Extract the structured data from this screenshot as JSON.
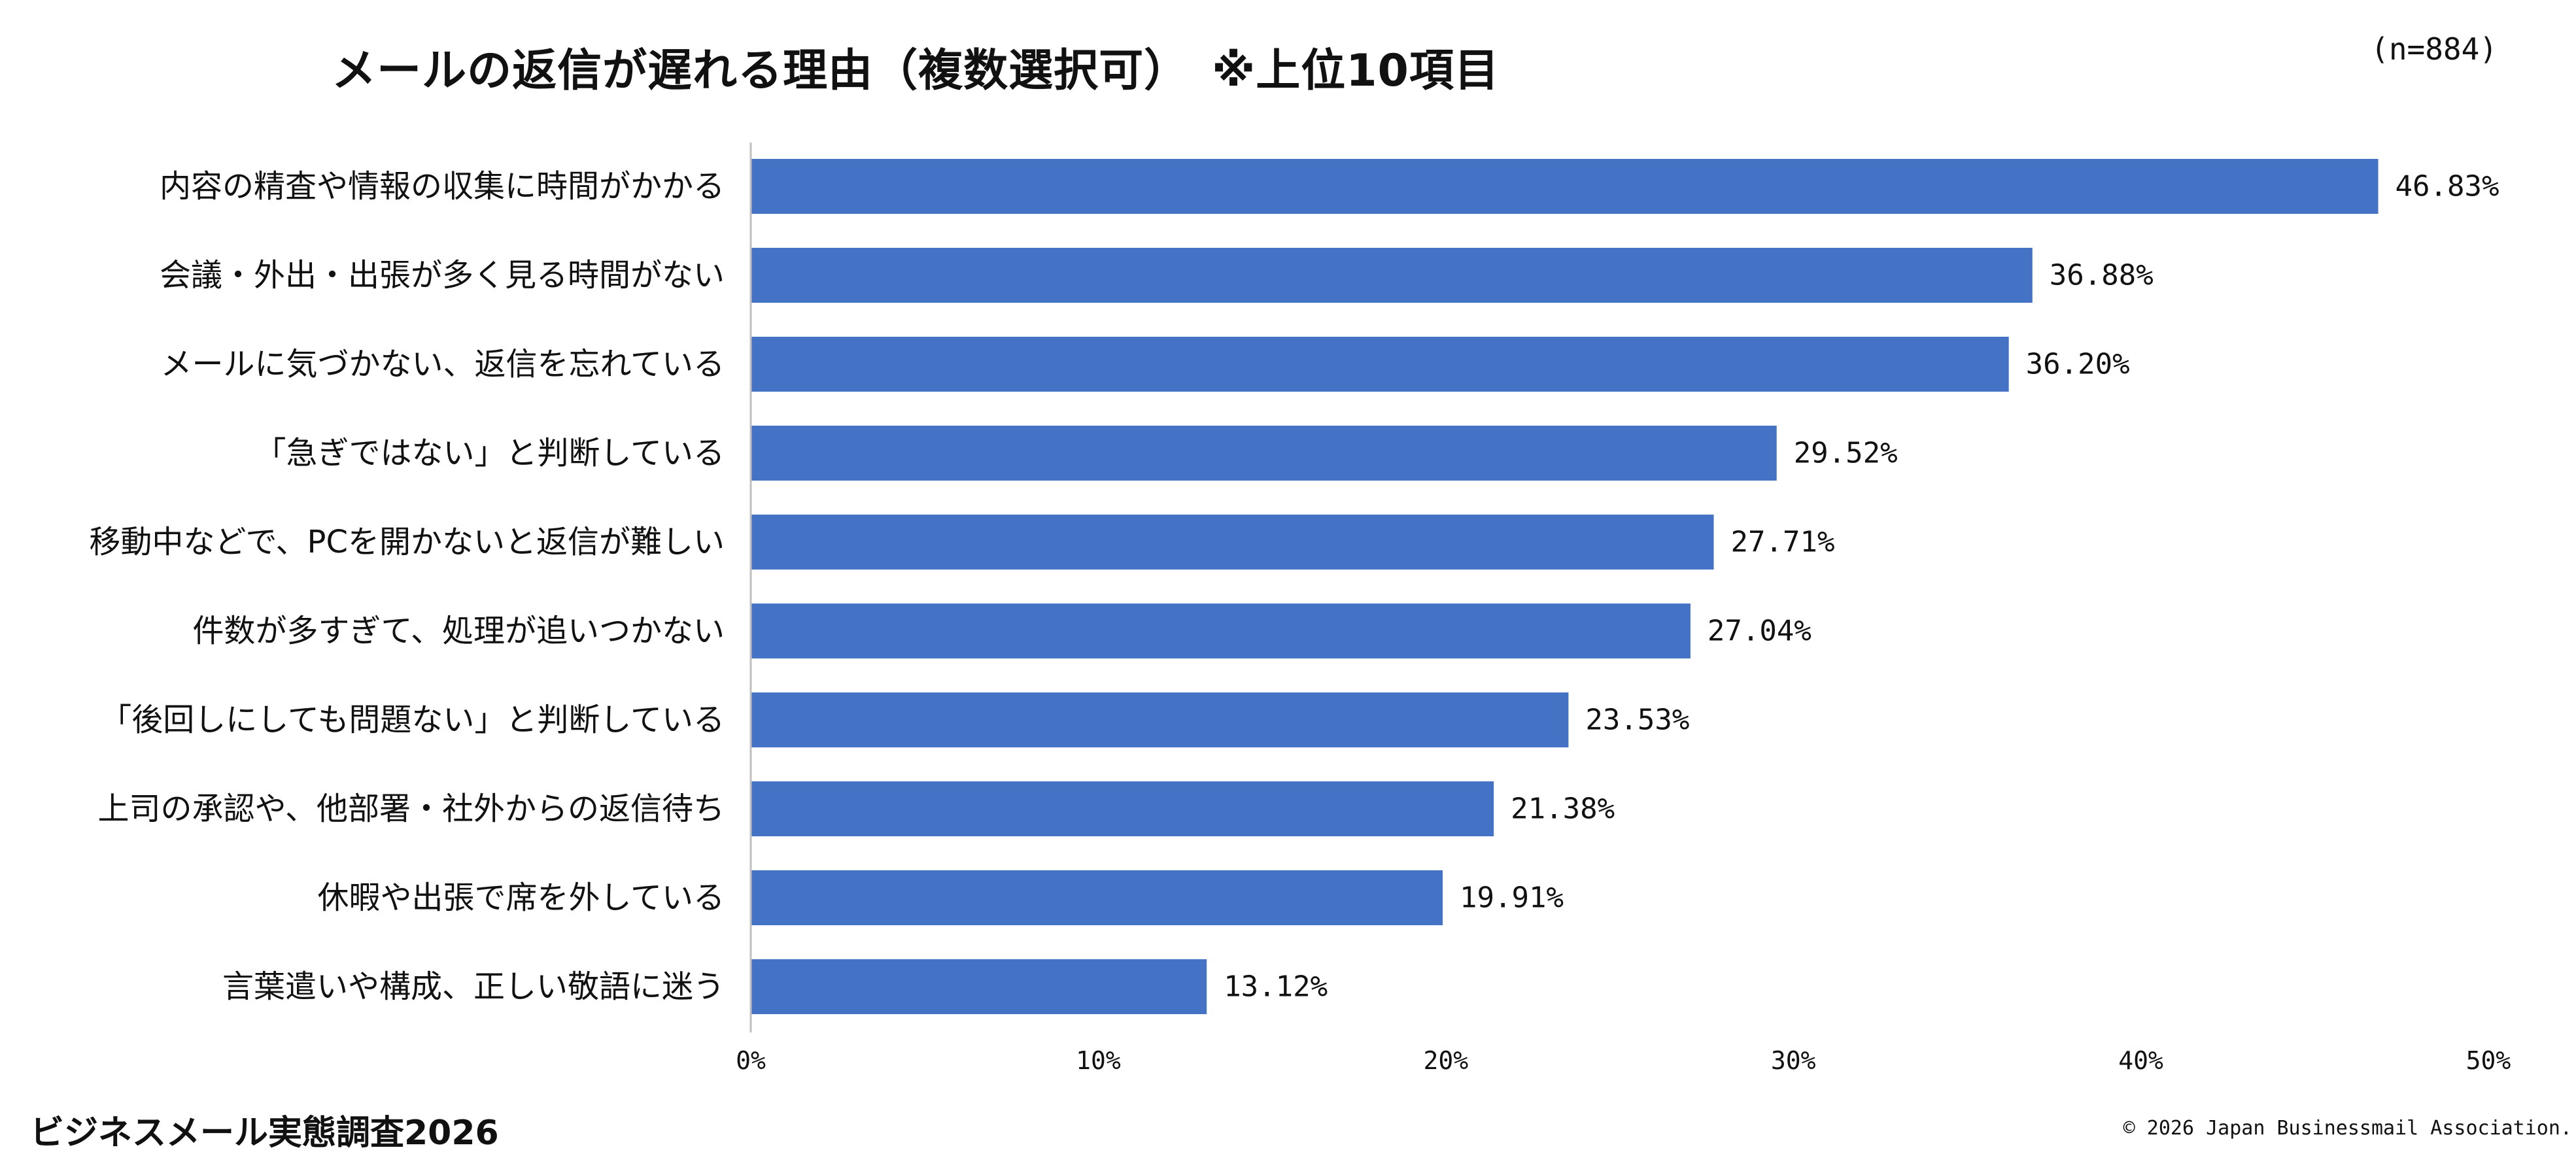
{
  "chart_data": {
    "type": "bar",
    "orientation": "horizontal",
    "title": "メールの返信が遅れる理由（複数選択可）　※上位10項目",
    "sample_size": "(n=884)",
    "categories": [
      "内容の精査や情報の収集に時間がかかる",
      "会議・外出・出張が多く見る時間がない",
      "メールに気づかない、返信を忘れている",
      "「急ぎではない」と判断している",
      "移動中などで、PCを開かないと返信が難しい",
      "件数が多すぎて、処理が追いつかない",
      "「後回しにしても問題ない」と判断している",
      "上司の承認や、他部署・社外からの返信待ち",
      "休暇や出張で席を外している",
      "言葉遣いや構成、正しい敬語に迷う"
    ],
    "values": [
      46.83,
      36.88,
      36.2,
      29.52,
      27.71,
      27.04,
      23.53,
      21.38,
      19.91,
      13.12
    ],
    "value_labels": [
      "46.83%",
      "36.88%",
      "36.20%",
      "29.52%",
      "27.71%",
      "27.04%",
      "23.53%",
      "21.38%",
      "19.91%",
      "13.12%"
    ],
    "xlim": [
      0,
      50
    ],
    "x_ticks": [
      0,
      10,
      20,
      30,
      40,
      50
    ],
    "x_tick_labels": [
      "0%",
      "10%",
      "20%",
      "30%",
      "40%",
      "50%"
    ],
    "bar_color": "#4472c4",
    "grid": false,
    "legend": "none"
  },
  "footer": {
    "survey_name": "ビジネスメール実態調査2026",
    "copyright": "© 2026 Japan Businessmail Association."
  }
}
